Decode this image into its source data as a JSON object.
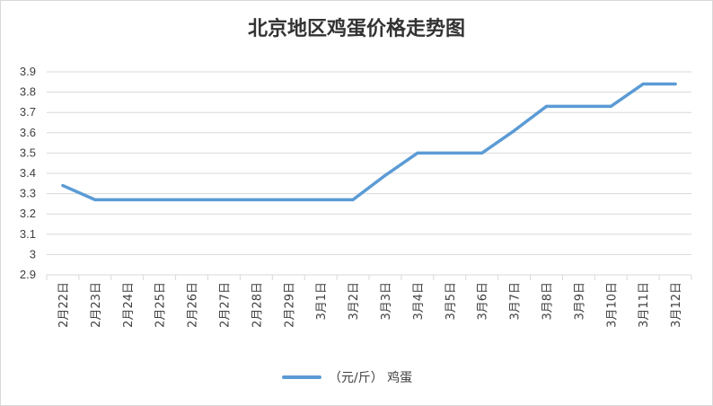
{
  "chart_data": {
    "type": "line",
    "title": "北京地区鸡蛋价格走势图",
    "xlabel": "",
    "ylabel": "",
    "categories": [
      "2月22日",
      "2月23日",
      "2月24日",
      "2月25日",
      "2月26日",
      "2月27日",
      "2月28日",
      "2月29日",
      "3月1日",
      "3月2日",
      "3月3日",
      "3月4日",
      "3月5日",
      "3月6日",
      "3月7日",
      "3月8日",
      "3月9日",
      "3月10日",
      "3月11日",
      "3月12日"
    ],
    "series": [
      {
        "name": "（元/斤） 鸡蛋",
        "values": [
          3.34,
          3.27,
          3.27,
          3.27,
          3.27,
          3.27,
          3.27,
          3.27,
          3.27,
          3.27,
          3.39,
          3.5,
          3.5,
          3.5,
          3.61,
          3.73,
          3.73,
          3.73,
          3.84,
          3.84
        ]
      }
    ],
    "ylim": [
      2.9,
      3.9
    ],
    "yticks": [
      "2.9",
      "3",
      "3.1",
      "3.2",
      "3.3",
      "3.4",
      "3.5",
      "3.6",
      "3.7",
      "3.8",
      "3.9"
    ],
    "grid": true,
    "legend_position": "bottom",
    "colors": {
      "series": "#5b9bd5",
      "grid": "#d9d9d9"
    }
  }
}
